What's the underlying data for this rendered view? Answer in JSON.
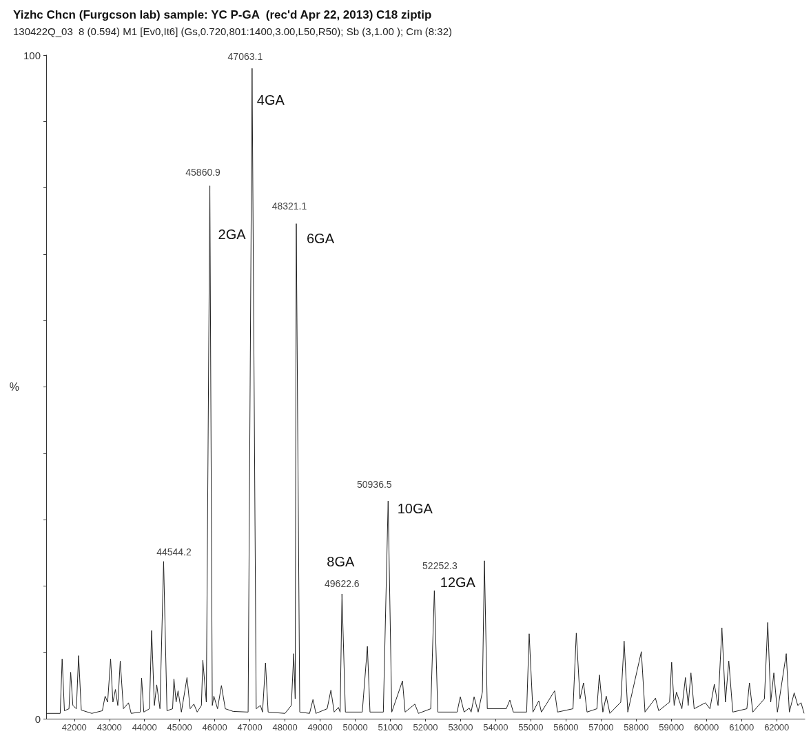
{
  "chart_data": {
    "type": "line",
    "title": "Yizhc Chcn (Furgcson lab) sample: YC P-GA  (rec'd Apr 22, 2013) C18 ziptip",
    "subtitle": "130422Q_03  8 (0.594) M1 [Ev0,It6] (Gs,0.720,801:1400,3.00,L50,R50); Sb (3,1.00 ); Cm (8:32)",
    "ylabel": "%",
    "xlim": [
      41200,
      62800
    ],
    "xticks": [
      42000,
      43000,
      44000,
      45000,
      46000,
      47000,
      48000,
      49000,
      50000,
      51000,
      52000,
      53000,
      54000,
      55000,
      56000,
      57000,
      58000,
      59000,
      60000,
      61000,
      62000
    ],
    "ylim": [
      0,
      100
    ],
    "yticks": [
      0,
      {
        "value": 10,
        "label": null
      },
      {
        "value": 20,
        "label": null
      },
      {
        "value": 30,
        "label": null
      },
      {
        "value": 40,
        "label": null
      },
      {
        "value": 50,
        "label": null
      },
      {
        "value": 60,
        "label": null
      },
      {
        "value": 70,
        "label": null
      },
      {
        "value": 80,
        "label": null
      },
      {
        "value": 90,
        "label": null
      },
      100
    ],
    "grid": false,
    "marker": "none",
    "line_style": "solid",
    "series": [
      {
        "color": "#222222",
        "x": [
          41200,
          41600,
          41655,
          41720,
          41850,
          41898,
          41960,
          42060,
          42123,
          42200,
          42500,
          42800,
          42878,
          42950,
          43035,
          43100,
          43172,
          43240,
          43309,
          43400,
          43544,
          43620,
          43880,
          43917,
          43980,
          44140,
          44203,
          44280,
          44348,
          44440,
          44544.2,
          44640,
          44800,
          44838,
          44900,
          44956,
          45050,
          45210,
          45300,
          45406,
          45500,
          45620,
          45661,
          45760,
          45860.9,
          45930,
          45975,
          46080,
          46190,
          46300,
          46524,
          46950,
          47063.1,
          47180,
          47300,
          47360,
          47445,
          47520,
          48000,
          48180,
          48248,
          48290,
          48321.1,
          48420,
          48700,
          48797,
          48880,
          49200,
          49307,
          49400,
          49522,
          49570,
          49622.6,
          49720,
          50200,
          50346,
          50420,
          50800,
          50936.5,
          51040,
          51345,
          51420,
          51698,
          51800,
          52150,
          52252.3,
          52350,
          52900,
          52992,
          53100,
          53246,
          53300,
          53384,
          53500,
          53620,
          53678,
          53760,
          54300,
          54403,
          54500,
          54880,
          54952,
          55060,
          55226,
          55300,
          55677,
          55760,
          56200,
          56294,
          56400,
          56500,
          56600,
          56880,
          56951,
          57050,
          57147,
          57250,
          57560,
          57656,
          57760,
          58146,
          58250,
          58548,
          58640,
          58950,
          59009,
          59080,
          59146,
          59300,
          59401,
          59480,
          59558,
          59650,
          59969,
          60100,
          60224,
          60330,
          60440,
          60540,
          60636,
          60750,
          61150,
          61224,
          61320,
          61650,
          61745,
          61830,
          61919,
          62020,
          62272,
          62360,
          62498,
          62600,
          62694,
          62780
        ],
        "values": [
          0.8,
          0.8,
          9.0,
          1.2,
          1.5,
          7.0,
          2.0,
          1.5,
          9.5,
          1.3,
          0.8,
          1.2,
          3.4,
          2.5,
          9.0,
          2.5,
          4.4,
          2.0,
          8.7,
          1.5,
          2.4,
          0.8,
          1.0,
          6.1,
          1.0,
          1.5,
          13.3,
          2.0,
          5.1,
          1.5,
          23.7,
          1.2,
          1.5,
          6.0,
          2.5,
          4.2,
          1.0,
          6.2,
          1.5,
          2.2,
          1.0,
          2.0,
          8.8,
          2.5,
          80.3,
          2.0,
          3.4,
          1.5,
          5.0,
          1.5,
          1.1,
          1.0,
          98,
          1.5,
          2.0,
          1.0,
          8.4,
          1.0,
          0.8,
          2.0,
          9.8,
          3.0,
          74.6,
          1.0,
          0.8,
          2.9,
          0.8,
          1.5,
          4.3,
          1.0,
          1.7,
          1.0,
          18.8,
          1.0,
          1.0,
          10.9,
          1.0,
          1.0,
          32.8,
          1.0,
          5.7,
          1.0,
          2.2,
          0.8,
          1.5,
          19.3,
          1.0,
          1.0,
          3.3,
          1.0,
          1.6,
          1.0,
          3.3,
          1.0,
          4.0,
          23.8,
          1.5,
          1.5,
          2.8,
          1.0,
          1.0,
          12.8,
          1.0,
          2.7,
          1.0,
          4.2,
          1.0,
          1.5,
          12.9,
          3.0,
          5.4,
          1.0,
          1.5,
          6.6,
          1.0,
          3.4,
          0.8,
          2.5,
          11.7,
          1.0,
          10.1,
          1.0,
          3.1,
          1.2,
          2.5,
          8.5,
          2.0,
          4.0,
          1.5,
          6.2,
          2.0,
          6.9,
          1.5,
          2.4,
          1.5,
          5.2,
          2.0,
          13.7,
          2.5,
          8.7,
          1.0,
          1.5,
          5.4,
          1.0,
          3.0,
          14.5,
          2.5,
          6.9,
          1.0,
          9.8,
          1.0,
          3.9,
          2.0,
          2.4,
          0.8
        ]
      }
    ],
    "annotations": [
      {
        "text": "47063.1",
        "x": 47063.1,
        "y": 98
      },
      {
        "text": "45860.9",
        "x": 45860.9,
        "y": 80.3
      },
      {
        "text": "48321.1",
        "x": 48321.1,
        "y": 74.6
      },
      {
        "text": "50936.5",
        "x": 50936.5,
        "y": 32.8
      },
      {
        "text": "44544.2",
        "x": 44544.2,
        "y": 23.7
      },
      {
        "text": "49622.6",
        "x": 49622.6,
        "y": 18.8
      },
      {
        "text": "52252.3",
        "x": 52252.3,
        "y": 19.3
      },
      {
        "text": "2GA",
        "x": 45860.9,
        "y": 80.3
      },
      {
        "text": "4GA",
        "x": 47063.1,
        "y": 98
      },
      {
        "text": "6GA",
        "x": 48321.1,
        "y": 74.6
      },
      {
        "text": "8GA",
        "x": 49622.6,
        "y": 18.8
      },
      {
        "text": "10GA",
        "x": 50936.5,
        "y": 32.8
      },
      {
        "text": "12GA",
        "x": 52252.3,
        "y": 19.3
      }
    ]
  }
}
